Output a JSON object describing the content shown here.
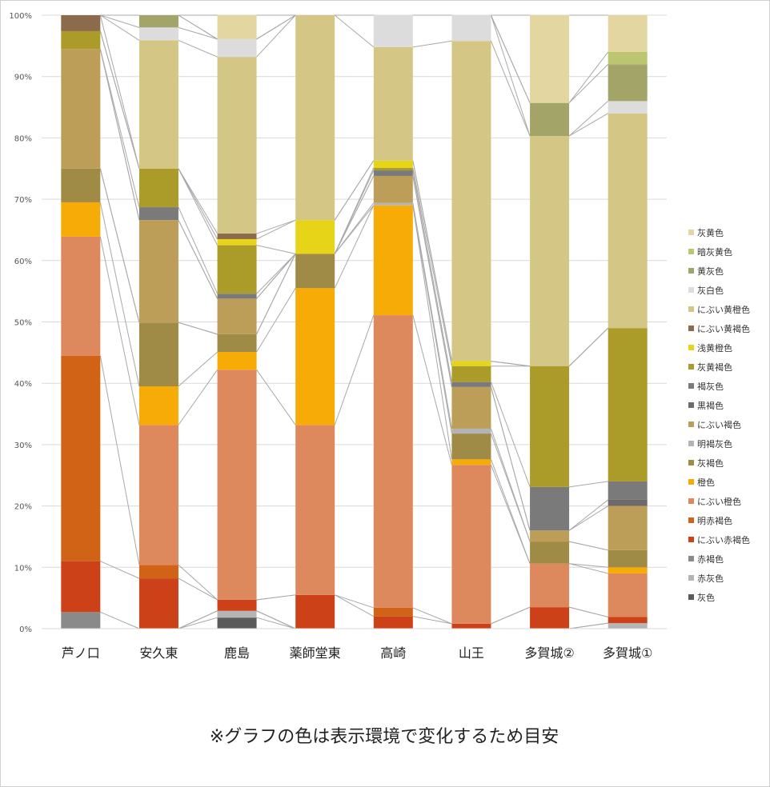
{
  "chart_data": {
    "type": "bar",
    "stacking": "percent",
    "categories": [
      "芦ノ口",
      "安久東",
      "鹿島",
      "薬師堂東",
      "高崎",
      "山王",
      "多賀城②",
      "多賀城①"
    ],
    "ylim": [
      0,
      100
    ],
    "yticks": [
      "0%",
      "10%",
      "20%",
      "30%",
      "40%",
      "50%",
      "60%",
      "70%",
      "80%",
      "90%",
      "100%"
    ],
    "grid": true,
    "series_lines": true,
    "legend_position": "right",
    "series": [
      {
        "name": "灰黄色",
        "color": "#e3d6a0",
        "values": [
          0,
          0,
          3.9,
          0,
          0,
          0,
          14.3,
          6.0
        ]
      },
      {
        "name": "暗灰黄色",
        "color": "#bcc56f",
        "values": [
          0,
          0,
          0,
          0,
          0,
          0,
          0,
          2.0
        ]
      },
      {
        "name": "黄灰色",
        "color": "#a3a468",
        "values": [
          0,
          2.0,
          0,
          0,
          0,
          0,
          5.4,
          6.0
        ]
      },
      {
        "name": "灰白色",
        "color": "#dcdcdc",
        "values": [
          0,
          2.1,
          2.9,
          0,
          5.2,
          4.2,
          0,
          2.0
        ]
      },
      {
        "name": "にぶい黄橙色",
        "color": "#d4c684",
        "values": [
          0,
          20.9,
          28.8,
          33.4,
          18.5,
          52.2,
          37.5,
          35.0
        ]
      },
      {
        "name": "にぶい黄褐色",
        "color": "#8c6a4c",
        "values": [
          2.6,
          0,
          0.9,
          0,
          0,
          0,
          0,
          0
        ]
      },
      {
        "name": "浅黄橙色",
        "color": "#e6d418",
        "values": [
          0,
          0,
          1.0,
          5.5,
          1.2,
          0.8,
          0,
          0
        ]
      },
      {
        "name": "灰黄褐色",
        "color": "#ab9b28",
        "values": [
          2.9,
          6.3,
          7.9,
          0,
          0.4,
          2.6,
          19.7,
          25.0
        ]
      },
      {
        "name": "褐灰色",
        "color": "#7a7a7a",
        "values": [
          0,
          2.1,
          0.8,
          0,
          0.9,
          0.8,
          7.1,
          3.0
        ]
      },
      {
        "name": "黒褐色",
        "color": "#6e6a6a",
        "values": [
          0,
          0,
          0,
          0,
          0,
          0,
          0,
          1.0
        ]
      },
      {
        "name": "にぶい褐色",
        "color": "#bc9e58",
        "values": [
          19.5,
          16.7,
          5.8,
          0,
          4.4,
          6.8,
          1.8,
          7.2
        ]
      },
      {
        "name": "明褐灰色",
        "color": "#b4b4b4",
        "values": [
          0,
          0,
          0,
          0,
          0.4,
          0.8,
          0,
          0
        ]
      },
      {
        "name": "灰褐色",
        "color": "#9f8b45",
        "values": [
          5.5,
          10.4,
          2.9,
          5.6,
          0,
          4.2,
          3.6,
          2.8
        ]
      },
      {
        "name": "橙色",
        "color": "#f7ab06",
        "values": [
          5.6,
          6.3,
          2.9,
          22.3,
          17.9,
          0.9,
          0,
          1.0
        ]
      },
      {
        "name": "にぶい橙色",
        "color": "#de895d",
        "values": [
          19.4,
          22.8,
          37.5,
          27.7,
          47.7,
          25.9,
          7.1,
          7.1
        ]
      },
      {
        "name": "明赤褐色",
        "color": "#d06316",
        "values": [
          33.5,
          2.2,
          0,
          0,
          1.4,
          0,
          0,
          0
        ]
      },
      {
        "name": "にぶい赤褐色",
        "color": "#cc4118",
        "values": [
          8.3,
          8.2,
          1.8,
          5.5,
          2.0,
          0.8,
          3.5,
          1.0
        ]
      },
      {
        "name": "赤褐色",
        "color": "#8a8a8a",
        "values": [
          2.7,
          0,
          0,
          0,
          0,
          0,
          0,
          0
        ]
      },
      {
        "name": "赤灰色",
        "color": "#b4b4b4",
        "values": [
          0,
          0,
          1.1,
          0,
          0,
          0,
          0,
          0.9
        ]
      },
      {
        "name": "灰色",
        "color": "#5a5a5a",
        "values": [
          0,
          0,
          1.8,
          0,
          0,
          0,
          0,
          0
        ]
      }
    ]
  },
  "note": "※グラフの色は表示環境で変化するため目安"
}
